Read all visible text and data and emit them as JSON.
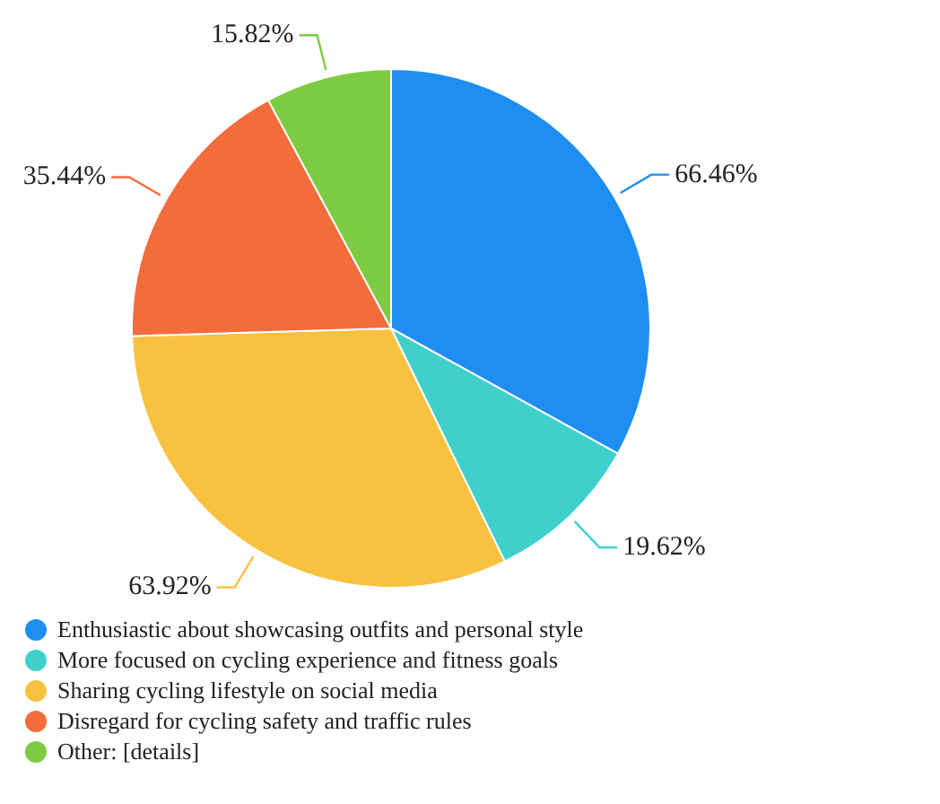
{
  "chart_data": {
    "type": "pie",
    "categories": [
      "Enthusiastic about showcasing outfits and personal style",
      "More focused on cycling experience and fitness goals",
      "Sharing cycling lifestyle on social media",
      "Disregard for cycling safety and traffic rules",
      "Other: [details]"
    ],
    "values": [
      66.46,
      19.62,
      63.92,
      35.44,
      15.82
    ],
    "value_labels": [
      "66.46%",
      "19.62%",
      "63.92%",
      "35.44%",
      "15.82%"
    ],
    "colors": [
      "#1e8ef2",
      "#3fd0cc",
      "#f8c240",
      "#f36c3c",
      "#7dcb43"
    ],
    "legend": "bottom"
  }
}
